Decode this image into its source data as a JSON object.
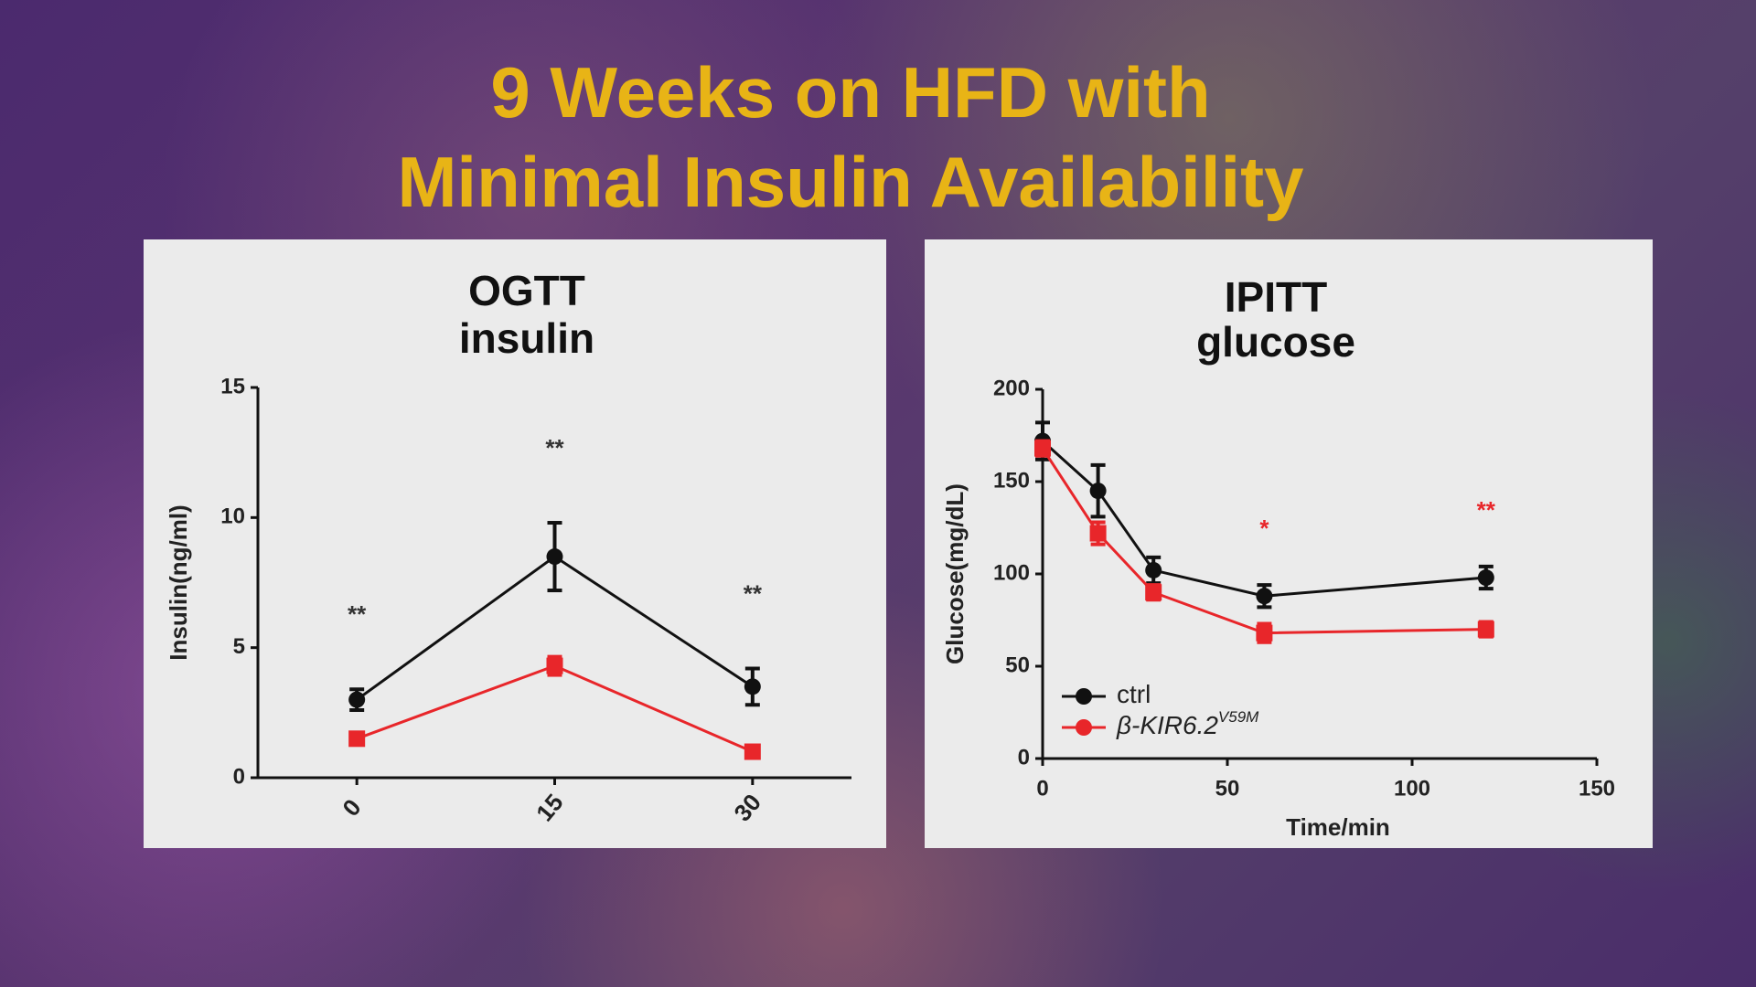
{
  "title": [
    "9 Weeks on HFD with",
    "Minimal Insulin Availability"
  ],
  "chart_data": [
    {
      "type": "line",
      "title": [
        "OGTT",
        "insulin"
      ],
      "y_label": "Insulin(ng/ml)",
      "categories": [
        "0",
        "15",
        "30"
      ],
      "ylim": [
        0,
        15
      ],
      "yticks": [
        0,
        5,
        10,
        15
      ],
      "series": [
        {
          "color": "#111111",
          "marker": "circle",
          "values": [
            3.0,
            8.5,
            3.5
          ],
          "errors": [
            0.4,
            1.3,
            0.7
          ]
        },
        {
          "color": "#e8262a",
          "marker": "square",
          "values": [
            1.5,
            4.3,
            1.0
          ],
          "errors": [
            0.2,
            0.35,
            0.1
          ]
        }
      ],
      "annotations": [
        {
          "text": "**",
          "category": 0,
          "color": "#333333"
        },
        {
          "text": "**",
          "category": 1,
          "color": "#333333"
        },
        {
          "text": "**",
          "category": 2,
          "color": "#333333"
        }
      ]
    },
    {
      "type": "scatter-line",
      "title": [
        "IPITT",
        "glucose"
      ],
      "x_label": "Time/min",
      "y_label": "Glucose(mg/dL)",
      "x": [
        0,
        15,
        30,
        60,
        120
      ],
      "xlim": [
        0,
        150
      ],
      "xticks": [
        0,
        50,
        100,
        150
      ],
      "ylim": [
        0,
        200
      ],
      "yticks": [
        0,
        50,
        100,
        150,
        200
      ],
      "legend": "lower left",
      "series": [
        {
          "name": "ctrl",
          "color": "#111111",
          "marker": "circle",
          "values": [
            172,
            145,
            102,
            88,
            98
          ],
          "errors": [
            10,
            14,
            7,
            6,
            6
          ]
        },
        {
          "name": "β-KIR6.2",
          "name_superscript": "V59M",
          "color": "#e8262a",
          "marker": "square",
          "values": [
            168,
            122,
            90,
            68,
            70
          ],
          "errors": [
            4,
            6,
            4,
            5,
            4
          ]
        }
      ],
      "annotations": [
        {
          "text": "*",
          "x": 60,
          "color": "#e8262a"
        },
        {
          "text": "**",
          "x": 120,
          "color": "#e8262a"
        }
      ]
    }
  ]
}
